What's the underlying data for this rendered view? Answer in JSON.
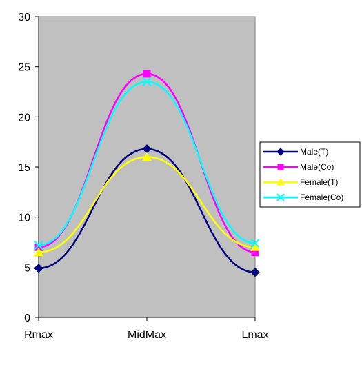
{
  "chart_data": {
    "type": "line",
    "categories": [
      "Rmax",
      "MidMax",
      "Lmax"
    ],
    "ylim": [
      0,
      30
    ],
    "yticks": [
      0,
      5,
      10,
      15,
      20,
      25,
      30
    ],
    "grid": false,
    "plot_background": "#c0c0c0",
    "legend_position": "right",
    "smooth": true,
    "series": [
      {
        "name": "Male(T)",
        "values": [
          4.9,
          16.8,
          4.5
        ],
        "color": "#000080",
        "marker": "diamond"
      },
      {
        "name": "Male(Co)",
        "values": [
          7.0,
          24.3,
          6.5
        ],
        "color": "#ff00ff",
        "marker": "square"
      },
      {
        "name": "Female(T)",
        "values": [
          6.5,
          16.0,
          7.0
        ],
        "color": "#ffff00",
        "marker": "triangle"
      },
      {
        "name": "Female(Co)",
        "values": [
          7.2,
          23.5,
          7.4
        ],
        "color": "#00ffff",
        "marker": "x"
      }
    ]
  }
}
